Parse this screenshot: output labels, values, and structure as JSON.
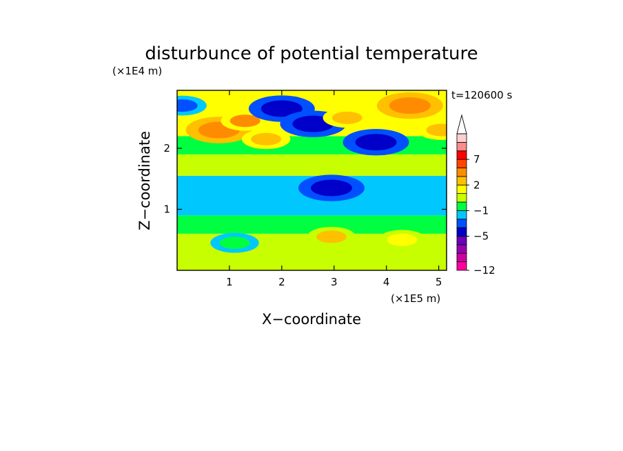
{
  "chart_data": {
    "type": "heatmap",
    "title": "disturbunce of potential temperature",
    "xlabel": "X−coordinate",
    "ylabel": "Z−coordinate",
    "x_unit": "(×1E5 m)",
    "y_unit": "(×1E4 m)",
    "time_label": "t=120600 s",
    "xlim": [
      0,
      5.15
    ],
    "ylim": [
      0,
      2.95
    ],
    "xticks": [
      1,
      2,
      3,
      4,
      5
    ],
    "yticks": [
      1,
      2
    ],
    "colorbar": {
      "levels": [
        -12,
        -11,
        -9,
        -7,
        -5,
        -3,
        -2,
        -1,
        0,
        1,
        2,
        3,
        5,
        7,
        9,
        11,
        13
      ],
      "labels": [
        "−12",
        "−5",
        "−1",
        "2",
        "7"
      ],
      "label_values": [
        -12,
        -5,
        -1,
        2,
        7
      ],
      "colors": [
        "#ff00a0",
        "#d0009e",
        "#9a00b0",
        "#6a00b8",
        "#0000c8",
        "#0050ff",
        "#00c8ff",
        "#00ff40",
        "#c8ff00",
        "#ffff00",
        "#ffc000",
        "#ff8c00",
        "#ff4500",
        "#ff0000",
        "#ff8c8c",
        "#ffd0d0"
      ],
      "overflow": "top"
    },
    "field_bands": [
      {
        "z_from": 0.0,
        "z_to": 0.6,
        "value": 0.5
      },
      {
        "z_from": 0.6,
        "z_to": 0.9,
        "value": -0.3
      },
      {
        "z_from": 0.9,
        "z_to": 1.55,
        "value": -1.5
      },
      {
        "z_from": 1.55,
        "z_to": 1.9,
        "value": 0.5
      },
      {
        "z_from": 1.9,
        "z_to": 2.2,
        "value": -0.5
      },
      {
        "z_from": 2.2,
        "z_to": 2.95,
        "value": 1.5
      }
    ],
    "features": [
      {
        "x": 0.1,
        "z": 2.7,
        "value": -3
      },
      {
        "x": 0.8,
        "z": 2.3,
        "value": 3.5
      },
      {
        "x": 1.3,
        "z": 2.45,
        "value": 3
      },
      {
        "x": 1.7,
        "z": 2.15,
        "value": 2.5
      },
      {
        "x": 2.0,
        "z": 2.65,
        "value": -4
      },
      {
        "x": 2.6,
        "z": 2.4,
        "value": -4
      },
      {
        "x": 3.25,
        "z": 2.5,
        "value": 2.5
      },
      {
        "x": 3.8,
        "z": 2.1,
        "value": -4
      },
      {
        "x": 4.45,
        "z": 2.7,
        "value": 4
      },
      {
        "x": 5.05,
        "z": 2.3,
        "value": 2.5
      },
      {
        "x": 2.95,
        "z": 1.35,
        "value": -4
      },
      {
        "x": 2.95,
        "z": 0.55,
        "value": 2
      },
      {
        "x": 1.1,
        "z": 0.45,
        "value": -0.5
      },
      {
        "x": 4.3,
        "z": 0.5,
        "value": 1.5
      }
    ]
  }
}
